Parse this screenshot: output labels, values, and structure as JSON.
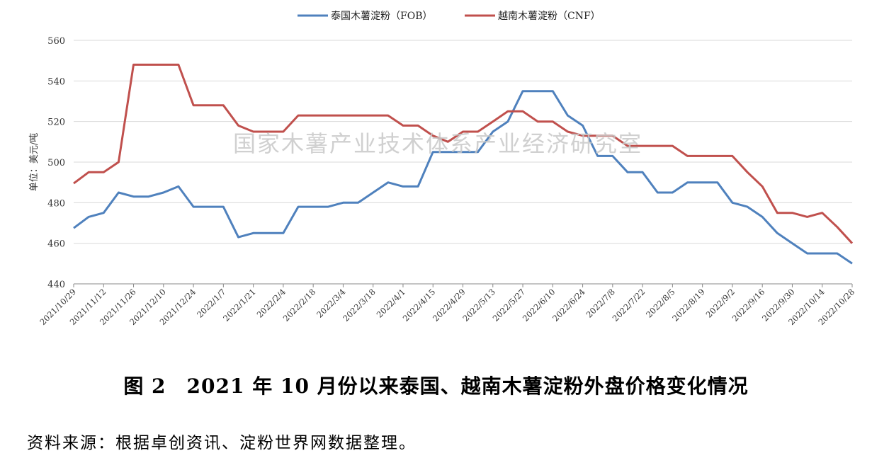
{
  "chart_data": {
    "type": "line",
    "ylabel": "单位：美元/吨",
    "ylim": [
      440,
      560
    ],
    "yticks": [
      440,
      460,
      480,
      500,
      520,
      540,
      560
    ],
    "grid": true,
    "legend_position": "top-center",
    "x_tick_labels": [
      "2021/10/29",
      "2021/11/12",
      "2021/11/26",
      "2021/12/10",
      "2021/12/24",
      "2022/1/7",
      "2022/1/21",
      "2022/2/4",
      "2022/2/18",
      "2022/3/4",
      "2022/3/18",
      "2022/4/1",
      "2022/4/15",
      "2022/4/29",
      "2022/5/13",
      "2022/5/27",
      "2022/6/10",
      "2022/6/24",
      "2022/7/8",
      "2022/7/22",
      "2022/8/5",
      "2022/8/19",
      "2022/9/2",
      "2022/9/16",
      "2022/9/30",
      "2022/10/14",
      "2022/10/28"
    ],
    "series": [
      {
        "name": "泰国木薯淀粉（FOB）",
        "color": "#4F81BD",
        "values": [
          467.5,
          473,
          475,
          485,
          483,
          483,
          485,
          488,
          478,
          478,
          478,
          463,
          465,
          465,
          465,
          478,
          478,
          478,
          480,
          480,
          485,
          490,
          488,
          488,
          505,
          505,
          505,
          505,
          515,
          520,
          535,
          535,
          535,
          523,
          518,
          503,
          503,
          495,
          495,
          485,
          485,
          490,
          490,
          490,
          480,
          478,
          473,
          465,
          460,
          455,
          455,
          455,
          450
        ]
      },
      {
        "name": "越南木薯淀粉（CNF）",
        "color": "#C0504D",
        "values": [
          489.5,
          495,
          495,
          500,
          548,
          548,
          548,
          548,
          528,
          528,
          528,
          518,
          515,
          515,
          515,
          523,
          523,
          523,
          523,
          523,
          523,
          523,
          518,
          518,
          513,
          510,
          515,
          515,
          520,
          525,
          525,
          520,
          520,
          515,
          513,
          513,
          513,
          508,
          508,
          508,
          508,
          503,
          503,
          503,
          503,
          495,
          488,
          475,
          475,
          473,
          475,
          468,
          460
        ]
      }
    ]
  },
  "watermark": "国家木薯产业技术体系产业经济研究室",
  "caption": "图 2　2021 年 10 月份以来泰国、越南木薯淀粉外盘价格变化情况",
  "source_note": "资料来源：根据卓创资讯、淀粉世界网数据整理。"
}
